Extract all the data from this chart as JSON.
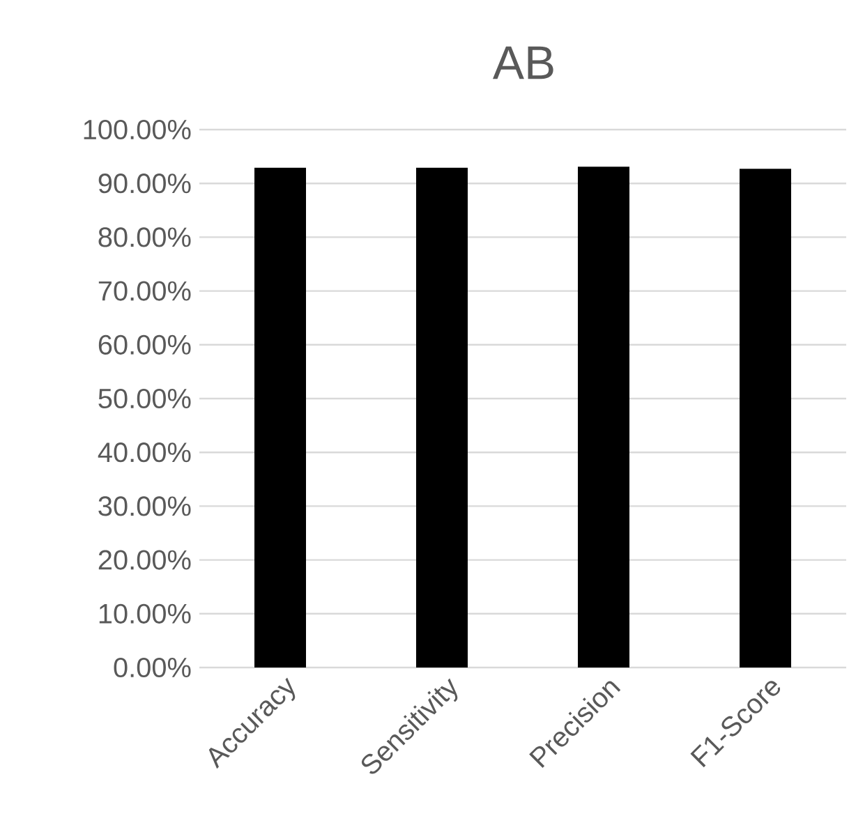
{
  "chart_data": {
    "type": "bar",
    "title": "AB",
    "categories": [
      "Accuracy",
      "Sensitivity",
      "Precision",
      "F1-Score"
    ],
    "values": [
      92.9,
      92.9,
      93.1,
      92.7
    ],
    "color": "#000000",
    "ylim": [
      0,
      100
    ],
    "yticks": [
      {
        "value": 0,
        "label": "0.00%"
      },
      {
        "value": 10,
        "label": "10.00%"
      },
      {
        "value": 20,
        "label": "20.00%"
      },
      {
        "value": 30,
        "label": "30.00%"
      },
      {
        "value": 40,
        "label": "40.00%"
      },
      {
        "value": 50,
        "label": "50.00%"
      },
      {
        "value": 60,
        "label": "60.00%"
      },
      {
        "value": 70,
        "label": "70.00%"
      },
      {
        "value": 80,
        "label": "80.00%"
      },
      {
        "value": 90,
        "label": "90.00%"
      },
      {
        "value": 100,
        "label": "100.00%"
      }
    ],
    "grid": "y"
  }
}
